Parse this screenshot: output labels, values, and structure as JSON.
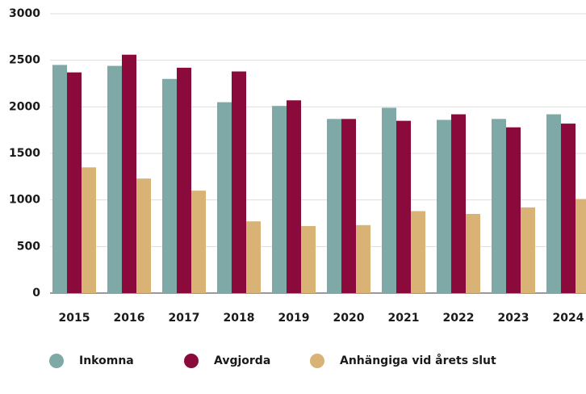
{
  "chart_data": {
    "type": "bar",
    "categories": [
      "2015",
      "2016",
      "2017",
      "2018",
      "2019",
      "2020",
      "2021",
      "2022",
      "2023",
      "2024"
    ],
    "series": [
      {
        "name": "Inkomna",
        "color": "#7fa9a6",
        "values": [
          2450,
          2440,
          2300,
          2050,
          2010,
          1870,
          1990,
          1860,
          1870,
          1920
        ]
      },
      {
        "name": "Avgjorda",
        "color": "#8a0a3c",
        "values": [
          2370,
          2560,
          2420,
          2380,
          2070,
          1870,
          1850,
          1920,
          1780,
          1820
        ]
      },
      {
        "name": "Anhängiga vid årets slut",
        "color": "#d9b276",
        "values": [
          1350,
          1230,
          1100,
          770,
          720,
          730,
          880,
          850,
          920,
          1010
        ]
      }
    ],
    "ylim": [
      0,
      3000
    ],
    "yticks": [
      0,
      500,
      1000,
      1500,
      2000,
      2500,
      3000
    ],
    "grid": true,
    "legend": "bottom"
  }
}
